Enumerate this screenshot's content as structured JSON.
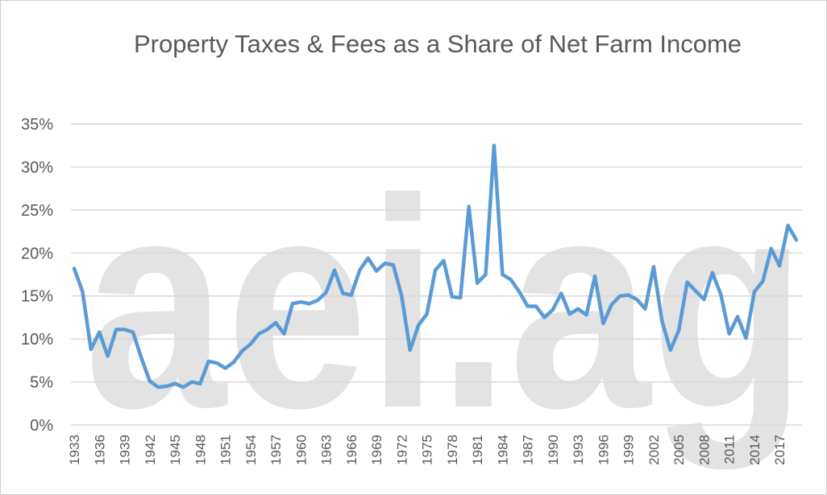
{
  "chart_data": {
    "type": "line",
    "title": "Property Taxes & Fees as a Share of Net Farm Income",
    "watermark": "aei.ag",
    "x": [
      1933,
      1934,
      1935,
      1936,
      1937,
      1938,
      1939,
      1940,
      1941,
      1942,
      1943,
      1944,
      1945,
      1946,
      1947,
      1948,
      1949,
      1950,
      1951,
      1952,
      1953,
      1954,
      1955,
      1956,
      1957,
      1958,
      1959,
      1960,
      1961,
      1962,
      1963,
      1964,
      1965,
      1966,
      1967,
      1968,
      1969,
      1970,
      1971,
      1972,
      1973,
      1974,
      1975,
      1976,
      1977,
      1978,
      1979,
      1980,
      1981,
      1982,
      1983,
      1984,
      1985,
      1986,
      1987,
      1988,
      1989,
      1990,
      1991,
      1992,
      1993,
      1994,
      1995,
      1996,
      1997,
      1998,
      1999,
      2000,
      2001,
      2002,
      2003,
      2004,
      2005,
      2006,
      2007,
      2008,
      2009,
      2010,
      2011,
      2012,
      2013,
      2014,
      2015,
      2016,
      2017,
      2018,
      2019
    ],
    "series": [
      {
        "color": "#5b9bd5",
        "values": [
          18.2,
          15.5,
          8.8,
          10.8,
          8.0,
          11.1,
          11.1,
          10.8,
          7.8,
          5.1,
          4.4,
          4.5,
          4.8,
          4.4,
          5.0,
          4.8,
          7.4,
          7.2,
          6.6,
          7.3,
          8.6,
          9.4,
          10.6,
          11.1,
          11.9,
          10.6,
          14.1,
          14.3,
          14.1,
          14.5,
          15.4,
          18.0,
          15.3,
          15.1,
          18.0,
          19.4,
          17.9,
          18.8,
          18.6,
          15.0,
          8.7,
          11.6,
          12.9,
          18.0,
          19.1,
          14.9,
          14.8,
          25.4,
          16.5,
          17.5,
          32.5,
          17.5,
          16.9,
          15.5,
          13.8,
          13.8,
          12.5,
          13.4,
          15.3,
          12.9,
          13.5,
          12.8,
          17.3,
          11.8,
          14.0,
          15.0,
          15.1,
          14.6,
          13.5,
          18.4,
          12.1,
          8.7,
          11.0,
          16.6,
          15.6,
          14.6,
          17.7,
          15.2,
          10.6,
          12.6,
          10.1,
          15.5,
          16.7,
          20.5,
          18.5,
          23.2,
          21.5
        ]
      }
    ],
    "xlim": [
      1933,
      2019
    ],
    "xticks": [
      1933,
      1936,
      1939,
      1942,
      1945,
      1948,
      1951,
      1954,
      1957,
      1960,
      1963,
      1966,
      1969,
      1972,
      1975,
      1978,
      1981,
      1984,
      1987,
      1990,
      1993,
      1996,
      1999,
      2002,
      2005,
      2008,
      2011,
      2014,
      2017
    ],
    "ylim": [
      0,
      35
    ],
    "yticks": [
      {
        "value": 0,
        "label": "0%"
      },
      {
        "value": 5,
        "label": "5%"
      },
      {
        "value": 10,
        "label": "10%"
      },
      {
        "value": 15,
        "label": "15%"
      },
      {
        "value": 20,
        "label": "20%"
      },
      {
        "value": 25,
        "label": "25%"
      },
      {
        "value": 30,
        "label": "30%"
      },
      {
        "value": 35,
        "label": "35%"
      }
    ],
    "grid": true
  }
}
